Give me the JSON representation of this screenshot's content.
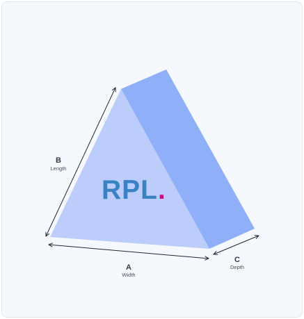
{
  "logo": {
    "text": "RPL",
    "dot": "."
  },
  "dimensions": {
    "a": {
      "letter": "A",
      "name": "Width"
    },
    "b": {
      "letter": "B",
      "name": "Length"
    },
    "c": {
      "letter": "C",
      "name": "Depth"
    }
  },
  "colors": {
    "front_face": "#bccdfb",
    "side_face": "#8fb0f8",
    "logo": "#3b82c4",
    "logo_dot": "#c0148a",
    "arrow": "#1f2933"
  }
}
